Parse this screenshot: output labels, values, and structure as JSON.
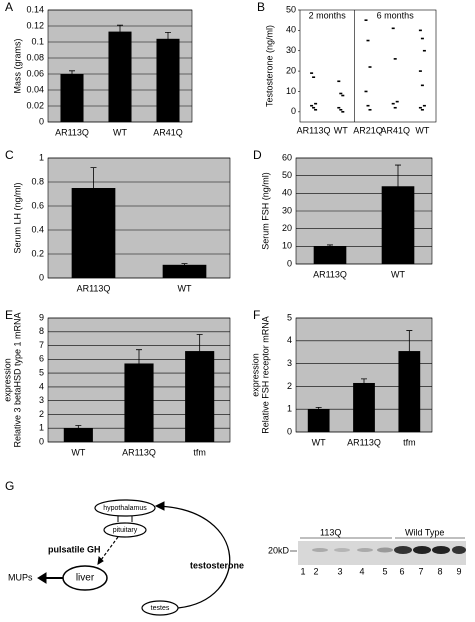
{
  "chart_data": [
    {
      "panel": "A",
      "type": "bar",
      "ylabel": [
        "Mass (grams)"
      ],
      "categories": [
        "AR113Q",
        "WT",
        "AR41Q"
      ],
      "values": [
        0.06,
        0.113,
        0.104
      ],
      "errors": [
        0.004,
        0.008,
        0.008
      ],
      "ylim": [
        0,
        0.14
      ],
      "yticks": [
        0,
        0.02,
        0.04,
        0.06,
        0.08,
        0.1,
        0.12,
        0.14
      ],
      "grid": true,
      "color": "#000000",
      "background": "#c0c0c0"
    },
    {
      "panel": "B",
      "type": "strip",
      "ylabel": [
        "Testosterone (ng/ml)"
      ],
      "groups": [
        {
          "name": "2 months",
          "categories": [
            "AR113Q",
            "WT"
          ],
          "values": [
            [
              19,
              17,
              4,
              3,
              2,
              1
            ],
            [
              15,
              9,
              8,
              2,
              1,
              0
            ]
          ]
        },
        {
          "name": "6 months",
          "categories": [
            "AR21Q",
            "AR41Q",
            "WT"
          ],
          "values": [
            [
              45,
              35,
              22,
              10,
              3,
              1
            ],
            [
              41,
              26,
              5,
              4,
              2
            ],
            [
              40,
              36,
              30,
              20,
              13,
              3,
              2,
              1
            ]
          ]
        }
      ],
      "ylim": [
        -5,
        50
      ],
      "yticks": [
        0,
        10,
        20,
        30,
        40,
        50
      ],
      "grid": false,
      "color": "#000000",
      "background": "#ffffff"
    },
    {
      "panel": "C",
      "type": "bar",
      "ylabel": [
        "Serum LH (ng/ml)"
      ],
      "categories": [
        "AR113Q",
        "WT"
      ],
      "values": [
        0.75,
        0.11
      ],
      "errors": [
        0.17,
        0.01
      ],
      "ylim": [
        0,
        1
      ],
      "yticks": [
        0,
        0.2,
        0.4,
        0.6,
        0.8,
        1
      ],
      "grid": true,
      "color": "#000000",
      "background": "#c0c0c0"
    },
    {
      "panel": "D",
      "type": "bar",
      "ylabel": [
        "Serum FSH (ng/ml)"
      ],
      "categories": [
        "AR113Q",
        "WT"
      ],
      "values": [
        10,
        44
      ],
      "errors": [
        0.8,
        12
      ],
      "ylim": [
        0,
        60
      ],
      "yticks": [
        0,
        10,
        20,
        30,
        40,
        50,
        60
      ],
      "grid": true,
      "color": "#000000",
      "background": "#c0c0c0"
    },
    {
      "panel": "E",
      "type": "bar",
      "ylabel": [
        "Relative 3 betaHSD type 1 mRNA",
        "expression"
      ],
      "categories": [
        "WT",
        "AR113Q",
        "tfm"
      ],
      "values": [
        1,
        5.7,
        6.6
      ],
      "errors": [
        0.2,
        1,
        1.2
      ],
      "ylim": [
        0,
        9
      ],
      "yticks": [
        0,
        1,
        2,
        3,
        4,
        5,
        6,
        7,
        8,
        9
      ],
      "grid": true,
      "color": "#000000",
      "background": "#c0c0c0"
    },
    {
      "panel": "F",
      "type": "bar",
      "ylabel": [
        "Relative FSH receptor mRNA",
        "expression"
      ],
      "categories": [
        "WT",
        "AR113Q",
        "tfm"
      ],
      "values": [
        1,
        2.15,
        3.55
      ],
      "errors": [
        0.08,
        0.18,
        0.9
      ],
      "ylim": [
        0,
        5
      ],
      "yticks": [
        0,
        1,
        2,
        3,
        4,
        5
      ],
      "grid": true,
      "color": "#000000",
      "background": "#c0c0c0"
    }
  ],
  "diagram": {
    "panel": "G",
    "nodes": [
      "hypothalamus",
      "pituitary",
      "liver",
      "testes"
    ],
    "labels": [
      "pulsatile GH",
      "testosterone",
      "MUPs"
    ]
  },
  "gel": {
    "groups": [
      "113Q",
      "Wild Type"
    ],
    "marker": "20kD",
    "lanes": [
      "1",
      "2",
      "3",
      "4",
      "5",
      "6",
      "7",
      "8",
      "9"
    ]
  }
}
